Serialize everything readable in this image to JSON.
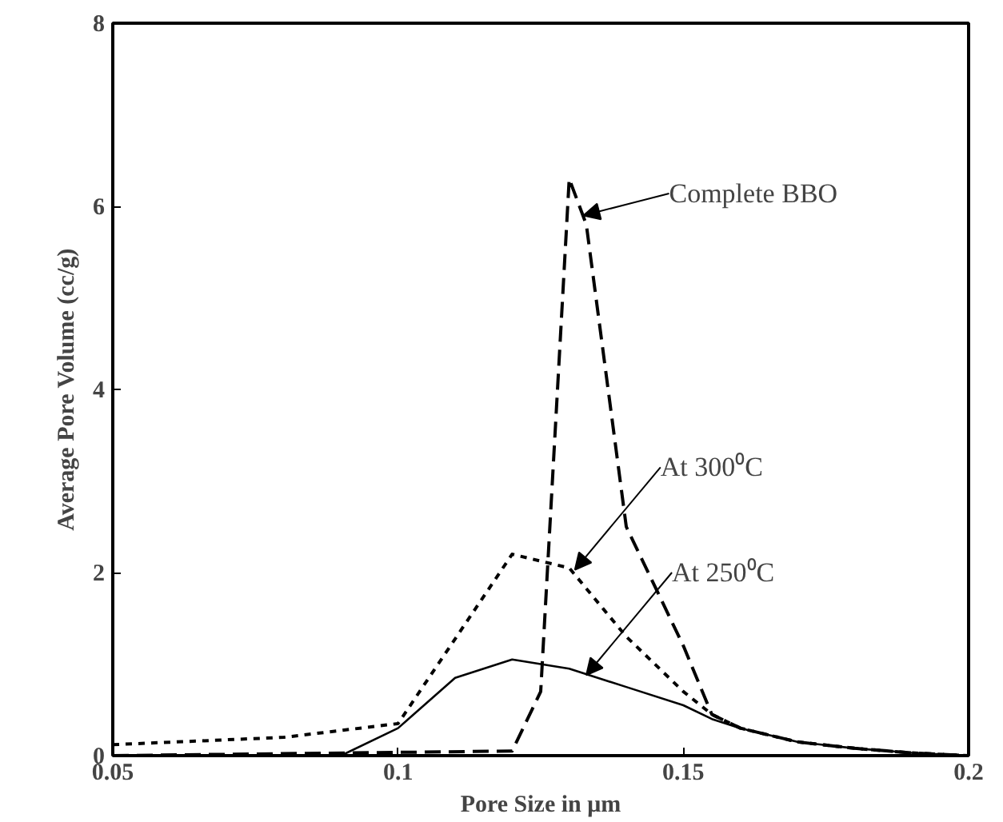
{
  "chart_data": {
    "type": "line",
    "xlabel": "Pore Size in μm",
    "ylabel": "Average Pore Volume (cc/g)",
    "xlim": [
      0.05,
      0.2
    ],
    "ylim": [
      0,
      8
    ],
    "xticks": [
      0.05,
      0.1,
      0.15,
      0.2
    ],
    "yticks": [
      0,
      2,
      4,
      6,
      8
    ],
    "grid": false,
    "marker": "none",
    "series": [
      {
        "color": "#000000",
        "line_style": "dashed",
        "x": [
          0.05,
          0.12,
          0.125,
          0.13,
          0.133,
          0.14,
          0.15,
          0.155,
          0.16,
          0.17,
          0.18,
          0.19,
          0.2
        ],
        "values": [
          0,
          0.05,
          0.7,
          6.3,
          5.8,
          2.5,
          1.2,
          0.45,
          0.3,
          0.15,
          0.08,
          0.03,
          0
        ]
      },
      {
        "color": "#000000",
        "line_style": "dotted",
        "x": [
          0.05,
          0.08,
          0.1,
          0.12,
          0.13,
          0.14,
          0.15,
          0.155,
          0.16,
          0.17,
          0.18,
          0.19,
          0.2
        ],
        "values": [
          0.12,
          0.2,
          0.35,
          2.2,
          2.05,
          1.3,
          0.7,
          0.45,
          0.3,
          0.15,
          0.08,
          0.03,
          0
        ]
      },
      {
        "color": "#000000",
        "line_style": "solid",
        "x": [
          0.05,
          0.09,
          0.1,
          0.11,
          0.115,
          0.12,
          0.125,
          0.13,
          0.14,
          0.15,
          0.155,
          0.16,
          0.17,
          0.18,
          0.19,
          0.2
        ],
        "values": [
          0,
          0,
          0.3,
          0.85,
          0.95,
          1.05,
          1.0,
          0.95,
          0.75,
          0.55,
          0.4,
          0.3,
          0.15,
          0.08,
          0.03,
          0
        ]
      }
    ],
    "annotations": [
      {
        "text": "Complete BBO",
        "x": 0.1325,
        "y": 5.9
      },
      {
        "text": "At 300⁰C",
        "x": 0.131,
        "y": 2.03
      },
      {
        "text": "At 250⁰C",
        "x": 0.133,
        "y": 0.88
      }
    ]
  }
}
